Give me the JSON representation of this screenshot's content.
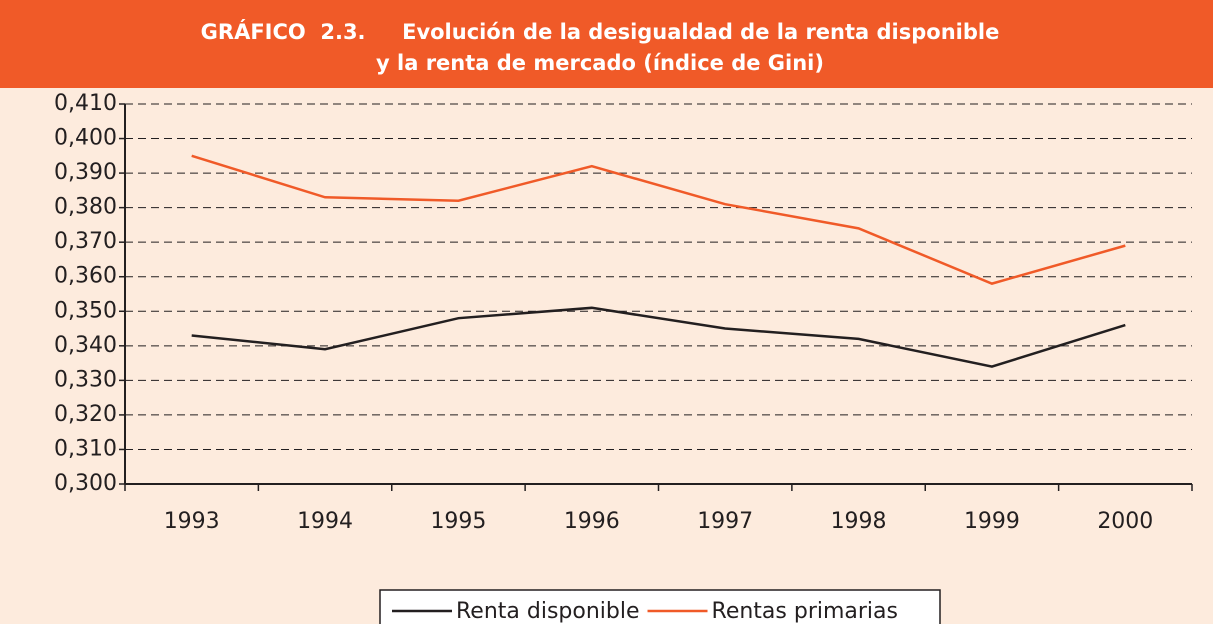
{
  "chart_data": {
    "type": "line",
    "title": [
      "GRÁFICO  2.3.     Evolución de la desigualdad de la renta disponible",
      "y la renta de mercado (índice de Gini)"
    ],
    "categories": [
      "1993",
      "1994",
      "1995",
      "1996",
      "1997",
      "1998",
      "1999",
      "2000"
    ],
    "series": [
      {
        "name": "Renta disponible",
        "color": "#231f20",
        "values": [
          0.343,
          0.339,
          0.348,
          0.351,
          0.345,
          0.342,
          0.334,
          0.346
        ]
      },
      {
        "name": "Rentas primarias",
        "color": "#f05a28",
        "values": [
          0.395,
          0.383,
          0.382,
          0.392,
          0.381,
          0.374,
          0.358,
          0.369
        ]
      }
    ],
    "ylim": [
      0.3,
      0.41
    ],
    "yticks": [
      {
        "value": 0.3,
        "label": "0,300"
      },
      {
        "value": 0.31,
        "label": "0,310"
      },
      {
        "value": 0.32,
        "label": "0,320"
      },
      {
        "value": 0.33,
        "label": "0,330"
      },
      {
        "value": 0.34,
        "label": "0,340"
      },
      {
        "value": 0.35,
        "label": "0,350"
      },
      {
        "value": 0.36,
        "label": "0,360"
      },
      {
        "value": 0.37,
        "label": "0,370"
      },
      {
        "value": 0.38,
        "label": "0,380"
      },
      {
        "value": 0.39,
        "label": "0,390"
      },
      {
        "value": 0.4,
        "label": "0,400"
      },
      {
        "value": 0.41,
        "label": "0,410"
      }
    ],
    "grid": true,
    "legend": "bottom"
  }
}
